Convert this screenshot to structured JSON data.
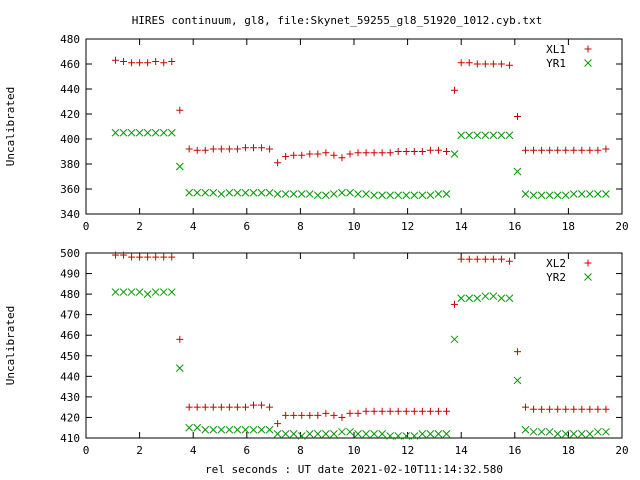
{
  "title": "HIRES continuum, gl8, file:Skynet_59255_gl8_51920_1012.cyb.txt",
  "colors": {
    "series1": "#cc0000",
    "series2": "#009900",
    "axis": "#000000",
    "background": "#ffffff"
  },
  "chart_data": [
    {
      "type": "scatter",
      "xlabel": "",
      "ylabel": "Uncalibrated",
      "xlim": [
        0,
        20
      ],
      "ylim": [
        340,
        480
      ],
      "xticks": [
        0,
        2,
        4,
        6,
        8,
        10,
        12,
        14,
        16,
        18,
        20
      ],
      "yticks": [
        340,
        360,
        380,
        400,
        420,
        440,
        460,
        480
      ],
      "grid": false,
      "legend": "top-right",
      "series": [
        {
          "name": "XL1",
          "marker": "plus",
          "x": [
            1.1,
            1.4,
            1.7,
            2.0,
            2.3,
            2.6,
            2.9,
            3.2,
            3.5,
            3.85,
            4.15,
            4.45,
            4.75,
            5.05,
            5.35,
            5.65,
            5.95,
            6.25,
            6.55,
            6.85,
            7.15,
            7.45,
            7.75,
            8.05,
            8.35,
            8.65,
            8.95,
            9.25,
            9.55,
            9.85,
            10.15,
            10.45,
            10.75,
            11.05,
            11.35,
            11.65,
            11.95,
            12.25,
            12.55,
            12.85,
            13.15,
            13.45,
            13.75,
            14.0,
            14.3,
            14.6,
            14.9,
            15.2,
            15.5,
            15.8,
            16.1,
            16.4,
            16.7,
            17.0,
            17.3,
            17.6,
            17.9,
            18.2,
            18.5,
            18.8,
            19.1,
            19.4
          ],
          "y": [
            463,
            462,
            461,
            461,
            461,
            462,
            461,
            462,
            423,
            392,
            391,
            391,
            392,
            392,
            392,
            392,
            393,
            393,
            393,
            392,
            381,
            386,
            387,
            387,
            388,
            388,
            389,
            387,
            385,
            388,
            389,
            389,
            389,
            389,
            389,
            390,
            390,
            390,
            390,
            391,
            391,
            390,
            439,
            461,
            461,
            460,
            460,
            460,
            460,
            459,
            418,
            391,
            391,
            391,
            391,
            391,
            391,
            391,
            391,
            391,
            391,
            392
          ]
        },
        {
          "name": "YR1",
          "marker": "cross",
          "x": [
            1.1,
            1.4,
            1.7,
            2.0,
            2.3,
            2.6,
            2.9,
            3.2,
            3.5,
            3.85,
            4.15,
            4.45,
            4.75,
            5.05,
            5.35,
            5.65,
            5.95,
            6.25,
            6.55,
            6.85,
            7.15,
            7.45,
            7.75,
            8.05,
            8.35,
            8.65,
            8.95,
            9.25,
            9.55,
            9.85,
            10.15,
            10.45,
            10.75,
            11.05,
            11.35,
            11.65,
            11.95,
            12.25,
            12.55,
            12.85,
            13.15,
            13.45,
            13.75,
            14.0,
            14.3,
            14.6,
            14.9,
            15.2,
            15.5,
            15.8,
            16.1,
            16.4,
            16.7,
            17.0,
            17.3,
            17.6,
            17.9,
            18.2,
            18.5,
            18.8,
            19.1,
            19.4
          ],
          "y": [
            405,
            405,
            405,
            405,
            405,
            405,
            405,
            405,
            378,
            357,
            357,
            357,
            357,
            356,
            357,
            357,
            357,
            357,
            357,
            357,
            356,
            356,
            356,
            356,
            356,
            355,
            355,
            356,
            357,
            357,
            356,
            356,
            355,
            355,
            355,
            355,
            355,
            355,
            355,
            355,
            356,
            356,
            388,
            403,
            403,
            403,
            403,
            403,
            403,
            403,
            374,
            356,
            355,
            355,
            355,
            355,
            355,
            356,
            356,
            356,
            356,
            356
          ]
        }
      ]
    },
    {
      "type": "scatter",
      "xlabel": "rel seconds : UT date 2021-02-10T11:14:32.580",
      "ylabel": "Uncalibrated",
      "xlim": [
        0,
        20
      ],
      "ylim": [
        410,
        500
      ],
      "xticks": [
        0,
        2,
        4,
        6,
        8,
        10,
        12,
        14,
        16,
        18,
        20
      ],
      "yticks": [
        410,
        420,
        430,
        440,
        450,
        460,
        470,
        480,
        490,
        500
      ],
      "grid": false,
      "legend": "top-right",
      "series": [
        {
          "name": "XL2",
          "marker": "plus",
          "x": [
            1.1,
            1.4,
            1.7,
            2.0,
            2.3,
            2.6,
            2.9,
            3.2,
            3.5,
            3.85,
            4.15,
            4.45,
            4.75,
            5.05,
            5.35,
            5.65,
            5.95,
            6.25,
            6.55,
            6.85,
            7.15,
            7.45,
            7.75,
            8.05,
            8.35,
            8.65,
            8.95,
            9.25,
            9.55,
            9.85,
            10.15,
            10.45,
            10.75,
            11.05,
            11.35,
            11.65,
            11.95,
            12.25,
            12.55,
            12.85,
            13.15,
            13.45,
            13.75,
            14.0,
            14.3,
            14.6,
            14.9,
            15.2,
            15.5,
            15.8,
            16.1,
            16.4,
            16.7,
            17.0,
            17.3,
            17.6,
            17.9,
            18.2,
            18.5,
            18.8,
            19.1,
            19.4
          ],
          "y": [
            499,
            499,
            498,
            498,
            498,
            498,
            498,
            498,
            458,
            425,
            425,
            425,
            425,
            425,
            425,
            425,
            425,
            426,
            426,
            425,
            417,
            421,
            421,
            421,
            421,
            421,
            422,
            421,
            420,
            422,
            422,
            423,
            423,
            423,
            423,
            423,
            423,
            423,
            423,
            423,
            423,
            423,
            475,
            497,
            497,
            497,
            497,
            497,
            497,
            496,
            452,
            425,
            424,
            424,
            424,
            424,
            424,
            424,
            424,
            424,
            424,
            424
          ]
        },
        {
          "name": "YR2",
          "marker": "cross",
          "x": [
            1.1,
            1.4,
            1.7,
            2.0,
            2.3,
            2.6,
            2.9,
            3.2,
            3.5,
            3.85,
            4.15,
            4.45,
            4.75,
            5.05,
            5.35,
            5.65,
            5.95,
            6.25,
            6.55,
            6.85,
            7.15,
            7.45,
            7.75,
            8.05,
            8.35,
            8.65,
            8.95,
            9.25,
            9.55,
            9.85,
            10.15,
            10.45,
            10.75,
            11.05,
            11.35,
            11.65,
            11.95,
            12.25,
            12.55,
            12.85,
            13.15,
            13.45,
            13.75,
            14.0,
            14.3,
            14.6,
            14.9,
            15.2,
            15.5,
            15.8,
            16.1,
            16.4,
            16.7,
            17.0,
            17.3,
            17.6,
            17.9,
            18.2,
            18.5,
            18.8,
            19.1,
            19.4
          ],
          "y": [
            481,
            481,
            481,
            481,
            480,
            481,
            481,
            481,
            444,
            415,
            415,
            414,
            414,
            414,
            414,
            414,
            414,
            414,
            414,
            414,
            412,
            412,
            412,
            411,
            412,
            412,
            412,
            412,
            413,
            413,
            412,
            412,
            412,
            412,
            411,
            411,
            411,
            411,
            412,
            412,
            412,
            412,
            458,
            478,
            478,
            478,
            479,
            479,
            478,
            478,
            438,
            414,
            413,
            413,
            413,
            412,
            412,
            412,
            412,
            412,
            413,
            413
          ]
        }
      ]
    }
  ]
}
